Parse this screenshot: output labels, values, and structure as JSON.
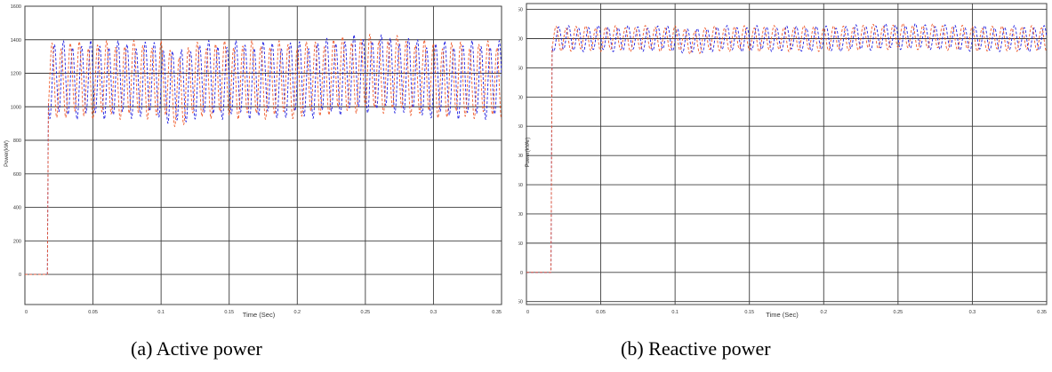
{
  "colors": {
    "series_blue": "#2020e0",
    "series_red": "#ef5a2a",
    "grid": "#3c3c3c",
    "axes": "#444444"
  },
  "chart_data": [
    {
      "type": "line",
      "caption": "(a) Active power",
      "xlabel": "Time (Sec)",
      "ylabel": "Power(kW)",
      "xlim": [
        0,
        0.35
      ],
      "ylim": [
        -180,
        1600
      ],
      "xticks": [
        0,
        0.05,
        0.1,
        0.15,
        0.2,
        0.25,
        0.3,
        0.35
      ],
      "xtick_labels": [
        "0",
        "0.05",
        "0.1",
        "0.15",
        "0.2",
        "0.25",
        "0.3",
        "0.35"
      ],
      "yticks": [
        0,
        200,
        400,
        600,
        800,
        1000,
        1200,
        1400,
        1600
      ],
      "ytick_labels": [
        "0",
        "200",
        "400",
        "600",
        "800",
        "1000",
        "1200",
        "1400",
        "1600"
      ],
      "grid": true,
      "series": [
        {
          "color": "#2020e0",
          "t_start": 0.0165,
          "initial": 0,
          "mean": 1160,
          "amplitude": 210,
          "phase": 0
        },
        {
          "color": "#ef5a2a",
          "t_start": 0.0165,
          "initial": 0,
          "mean": 1160,
          "amplitude": 210,
          "phase": 1.6
        }
      ]
    },
    {
      "type": "line",
      "caption": "(b) Reactive power",
      "xlabel": "Time (Sec)",
      "ylabel": "Power(kVAr)",
      "xlim": [
        0,
        0.35
      ],
      "ylim": [
        -55,
        460
      ],
      "xticks": [
        0,
        0.05,
        0.1,
        0.15,
        0.2,
        0.25,
        0.3,
        0.35
      ],
      "xtick_labels": [
        "0",
        "0.05",
        "0.1",
        "0.15",
        "0.2",
        "0.25",
        "0.3",
        "0.35"
      ],
      "yticks": [
        -50,
        0,
        50,
        100,
        150,
        200,
        250,
        300,
        350,
        400,
        450
      ],
      "ytick_labels": [
        "-50",
        "0",
        "50",
        "100",
        "150",
        "200",
        "250",
        "300",
        "350",
        "400",
        "450"
      ],
      "grid": true,
      "series": [
        {
          "color": "#2020e0",
          "t_start": 0.0165,
          "initial": 0,
          "mean": 400,
          "amplitude": 20,
          "phase": 0
        },
        {
          "color": "#ef5a2a",
          "t_start": 0.0165,
          "initial": 0,
          "mean": 400,
          "amplitude": 20,
          "phase": 1.6
        }
      ]
    }
  ]
}
